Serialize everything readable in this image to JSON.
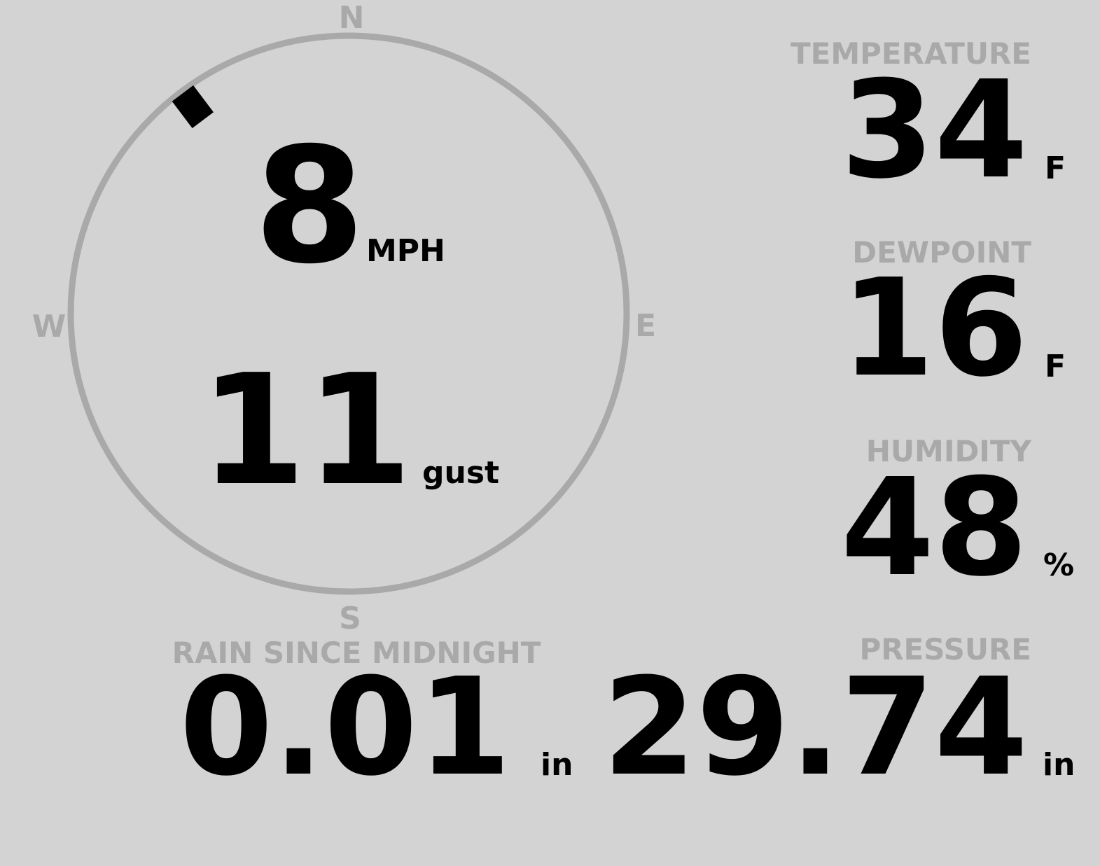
{
  "wind": {
    "compass": {
      "north": "N",
      "east": "E",
      "south": "S",
      "west": "W"
    },
    "direction": 323,
    "speed": 8,
    "speed_unit": "MPH",
    "gust": 11,
    "gust_unit": "gust"
  },
  "temperature": {
    "label": "TEMPERATURE",
    "value": 34,
    "unit": "F"
  },
  "dewpoint": {
    "label": "DEWPOINT",
    "value": 16,
    "unit": "F"
  },
  "humidity": {
    "label": "HUMIDITY",
    "value": 48,
    "unit": "%"
  },
  "pressure": {
    "label": "PRESSURE",
    "value": 29.74,
    "unit": "in"
  },
  "rain": {
    "label": "RAIN SINCE MIDNIGHT",
    "value": 0.01,
    "unit": "in"
  }
}
